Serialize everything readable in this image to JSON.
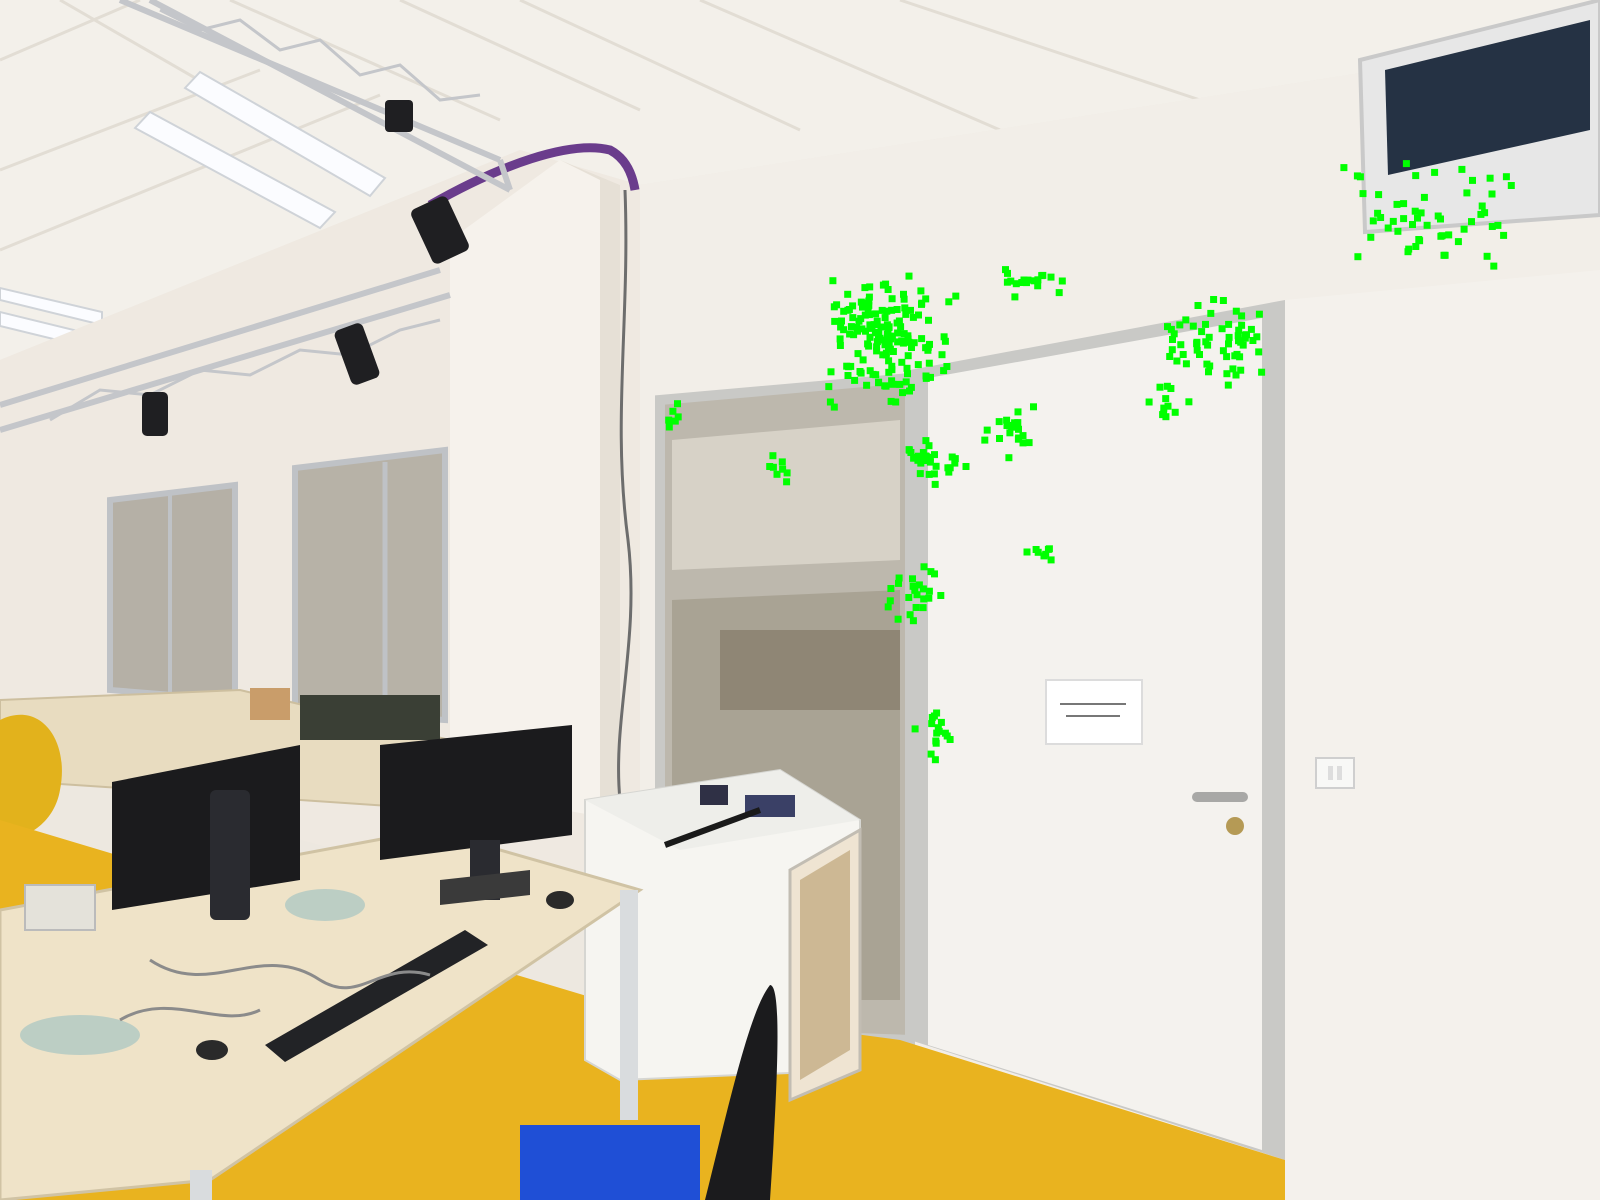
{
  "scene": {
    "colors": {
      "wall": "#f1ede7",
      "ceiling": "#f3f0ea",
      "floor": "#e9b31f",
      "door": "#f4f2ee",
      "door_frame": "#c9c9c6",
      "glass": "#b9b4a8",
      "desk_top": "#efe3c8",
      "desk_cabinet": "#e8dcc0",
      "monitor": "#1b1b1d",
      "truss": "#c4c6ca",
      "feature_points": "#00ff00",
      "pipe": "#6a3c8c",
      "blue_cushion": "#1f4fd6"
    }
  },
  "door_sign": {
    "line1": "",
    "line2": ""
  }
}
